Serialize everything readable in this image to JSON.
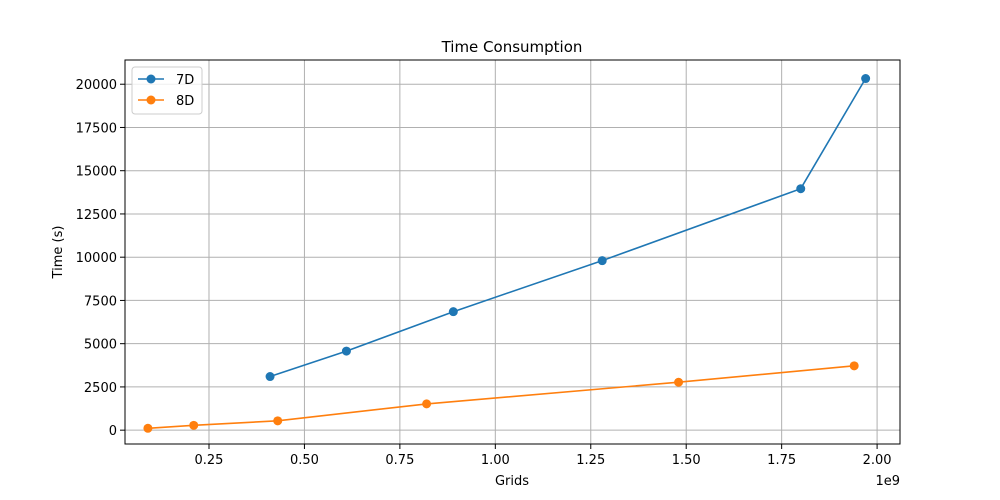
{
  "chart_data": {
    "type": "line",
    "title": "Time Consumption",
    "xlabel": "Grids",
    "ylabel": "Time (s)",
    "x_offset_label": "1e9",
    "x_scale": 1000000000,
    "xlim": [
      0.03,
      2.06
    ],
    "ylim": [
      -800,
      21400
    ],
    "x_ticks": [
      0.25,
      0.5,
      0.75,
      1.0,
      1.25,
      1.5,
      1.75,
      2.0
    ],
    "x_tick_labels": [
      "0.25",
      "0.50",
      "0.75",
      "1.00",
      "1.25",
      "1.50",
      "1.75",
      "2.00"
    ],
    "y_ticks": [
      0,
      2500,
      5000,
      7500,
      10000,
      12500,
      15000,
      17500,
      20000
    ],
    "y_tick_labels": [
      "0",
      "2500",
      "5000",
      "7500",
      "10000",
      "12500",
      "15000",
      "17500",
      "20000"
    ],
    "grid": true,
    "legend_position": "top-left",
    "series": [
      {
        "name": "7D",
        "color": "#1f77b4",
        "x": [
          0.41,
          0.61,
          0.89,
          1.28,
          1.8,
          1.97
        ],
        "y": [
          3100,
          4570,
          6850,
          9800,
          13960,
          20330
        ]
      },
      {
        "name": "8D",
        "color": "#ff7f0e",
        "x": [
          0.09,
          0.21,
          0.43,
          0.82,
          1.48,
          1.94
        ],
        "y": [
          110,
          280,
          540,
          1520,
          2770,
          3720
        ]
      }
    ]
  }
}
